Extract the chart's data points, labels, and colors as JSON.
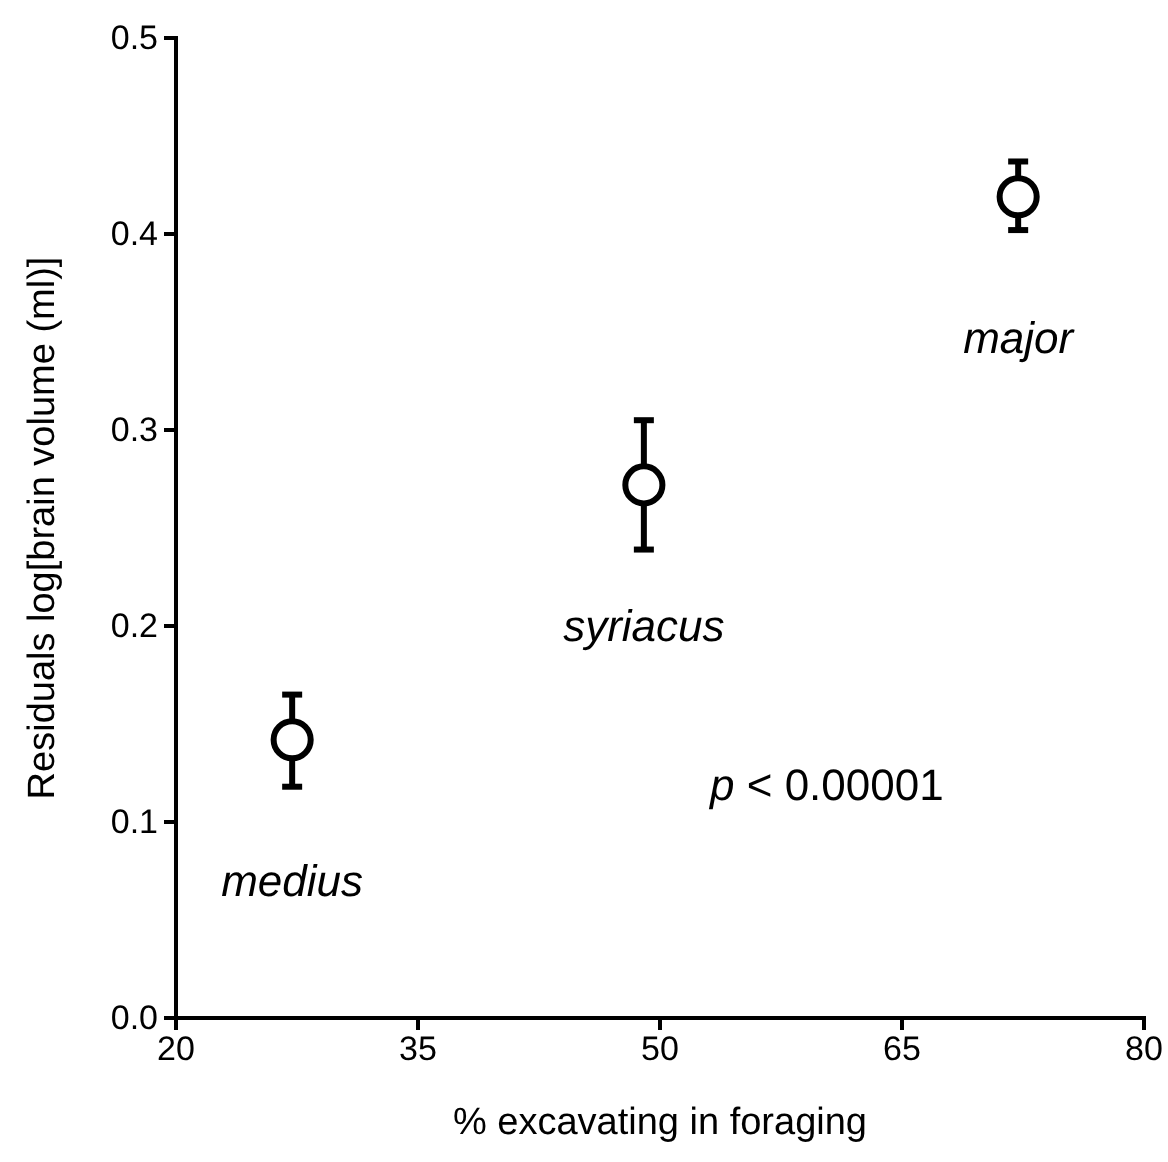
{
  "chart_data": {
    "type": "scatter",
    "xlabel": "% excavating in foraging",
    "ylabel": "Residuals log[brain volume (ml)]",
    "x": [
      27.2,
      49.0,
      72.2
    ],
    "values": [
      0.142,
      0.272,
      0.419
    ],
    "errors": [
      [
        0.118,
        0.165
      ],
      [
        0.239,
        0.305
      ],
      [
        0.402,
        0.437
      ]
    ],
    "color": "#000000",
    "marker": "circle",
    "xlim": [
      20,
      80
    ],
    "xticks": [
      20,
      35,
      50,
      65,
      80
    ],
    "ylim": [
      0,
      0.5
    ],
    "yticks": [
      {
        "value": 0,
        "label": "0.0"
      },
      0.1,
      0.2,
      0.3,
      0.4,
      0.5
    ],
    "grid": false,
    "annotations": [
      "medius",
      "syriacus",
      "major",
      "p < 0.00001"
    ]
  }
}
